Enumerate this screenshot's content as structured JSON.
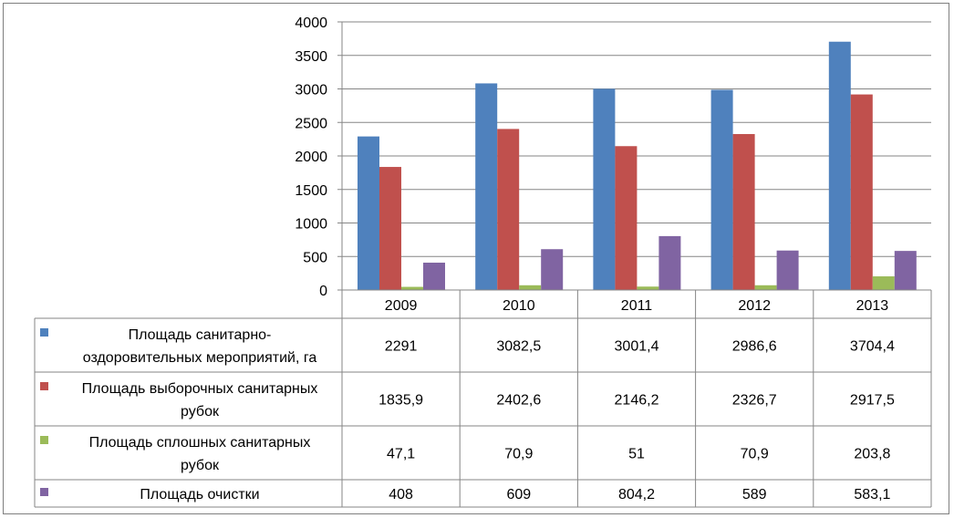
{
  "chart_data": {
    "type": "bar",
    "title": "",
    "xlabel": "",
    "ylabel": "",
    "ylim": [
      0,
      4000
    ],
    "yticks": [
      0,
      500,
      1000,
      1500,
      2000,
      2500,
      3000,
      3500,
      4000
    ],
    "grid": true,
    "legend": "data-table-left",
    "categories": [
      "2009",
      "2010",
      "2011",
      "2012",
      "2013"
    ],
    "series": [
      {
        "name": "Площадь санитарно-оздоровительных мероприятий, га",
        "name_lines": [
          "Площадь санитарно-",
          "оздоровительных мероприятий, га"
        ],
        "color": "#4f81bd",
        "values": [
          2291,
          3082.5,
          3001.4,
          2986.6,
          3704.4
        ],
        "labels": [
          "2291",
          "3082,5",
          "3001,4",
          "2986,6",
          "3704,4"
        ]
      },
      {
        "name": "Площадь выборочных санитарных рубок",
        "name_lines": [
          "Площадь выборочных санитарных",
          "рубок"
        ],
        "color": "#c0504d",
        "values": [
          1835.9,
          2402.6,
          2146.2,
          2326.7,
          2917.5
        ],
        "labels": [
          "1835,9",
          "2402,6",
          "2146,2",
          "2326,7",
          "2917,5"
        ]
      },
      {
        "name": "Площадь сплошных санитарных рубок",
        "name_lines": [
          "Площадь сплошных санитарных",
          "рубок"
        ],
        "color": "#9bbb59",
        "values": [
          47.1,
          70.9,
          51,
          70.9,
          203.8
        ],
        "labels": [
          "47,1",
          "70,9",
          "51",
          "70,9",
          "203,8"
        ]
      },
      {
        "name": "Площадь очистки",
        "name_lines": [
          "Площадь очистки"
        ],
        "color": "#8064a2",
        "values": [
          408,
          609,
          804.2,
          589,
          583.1
        ],
        "labels": [
          "408",
          "609",
          "804,2",
          "589",
          "583,1"
        ]
      }
    ]
  }
}
